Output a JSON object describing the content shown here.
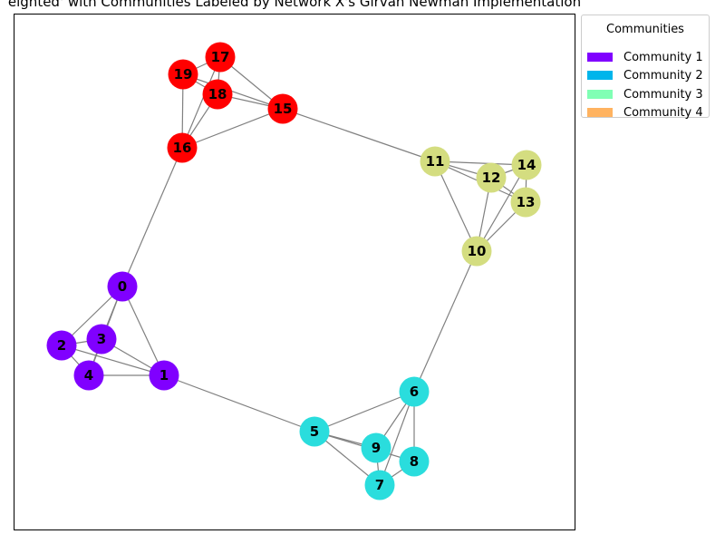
{
  "title": "eighted' with Communities Labeled by Network X's Girvan Newman Implementation",
  "legend": {
    "title": "Communities",
    "items": [
      {
        "label": "Community 1",
        "color": "#8000ff"
      },
      {
        "label": "Community 2",
        "color": "#00b5eb"
      },
      {
        "label": "Community 3",
        "color": "#80ffb4"
      },
      {
        "label": "Community 4",
        "color": "#ffb360"
      }
    ]
  },
  "graph": {
    "edge_color": "#808080",
    "nodes": [
      {
        "id": "0",
        "color": "#8000ff"
      },
      {
        "id": "1",
        "color": "#8000ff"
      },
      {
        "id": "2",
        "color": "#8000ff"
      },
      {
        "id": "3",
        "color": "#8000ff"
      },
      {
        "id": "4",
        "color": "#8000ff"
      },
      {
        "id": "5",
        "color": "#2adddd"
      },
      {
        "id": "6",
        "color": "#2adddd"
      },
      {
        "id": "7",
        "color": "#2adddd"
      },
      {
        "id": "8",
        "color": "#2adddd"
      },
      {
        "id": "9",
        "color": "#2adddd"
      },
      {
        "id": "10",
        "color": "#d4dd80"
      },
      {
        "id": "11",
        "color": "#d4dd80"
      },
      {
        "id": "12",
        "color": "#d4dd80"
      },
      {
        "id": "13",
        "color": "#d4dd80"
      },
      {
        "id": "14",
        "color": "#d4dd80"
      },
      {
        "id": "15",
        "color": "#ff0000"
      },
      {
        "id": "16",
        "color": "#ff0000"
      },
      {
        "id": "17",
        "color": "#ff0000"
      },
      {
        "id": "18",
        "color": "#ff0000"
      },
      {
        "id": "19",
        "color": "#ff0000"
      }
    ],
    "edges": [
      [
        "0",
        "1"
      ],
      [
        "0",
        "2"
      ],
      [
        "0",
        "3"
      ],
      [
        "0",
        "4"
      ],
      [
        "1",
        "2"
      ],
      [
        "1",
        "3"
      ],
      [
        "1",
        "4"
      ],
      [
        "2",
        "3"
      ],
      [
        "2",
        "4"
      ],
      [
        "3",
        "4"
      ],
      [
        "5",
        "6"
      ],
      [
        "5",
        "7"
      ],
      [
        "5",
        "8"
      ],
      [
        "5",
        "9"
      ],
      [
        "6",
        "7"
      ],
      [
        "6",
        "8"
      ],
      [
        "6",
        "9"
      ],
      [
        "7",
        "8"
      ],
      [
        "7",
        "9"
      ],
      [
        "10",
        "11"
      ],
      [
        "10",
        "12"
      ],
      [
        "10",
        "13"
      ],
      [
        "10",
        "14"
      ],
      [
        "11",
        "12"
      ],
      [
        "11",
        "13"
      ],
      [
        "11",
        "14"
      ],
      [
        "12",
        "13"
      ],
      [
        "12",
        "14"
      ],
      [
        "13",
        "14"
      ],
      [
        "15",
        "16"
      ],
      [
        "15",
        "17"
      ],
      [
        "15",
        "18"
      ],
      [
        "15",
        "19"
      ],
      [
        "16",
        "18"
      ],
      [
        "16",
        "19"
      ],
      [
        "16",
        "17"
      ],
      [
        "17",
        "18"
      ],
      [
        "17",
        "19"
      ],
      [
        "18",
        "19"
      ],
      [
        "0",
        "16"
      ],
      [
        "1",
        "5"
      ],
      [
        "6",
        "10"
      ],
      [
        "11",
        "15"
      ]
    ]
  }
}
